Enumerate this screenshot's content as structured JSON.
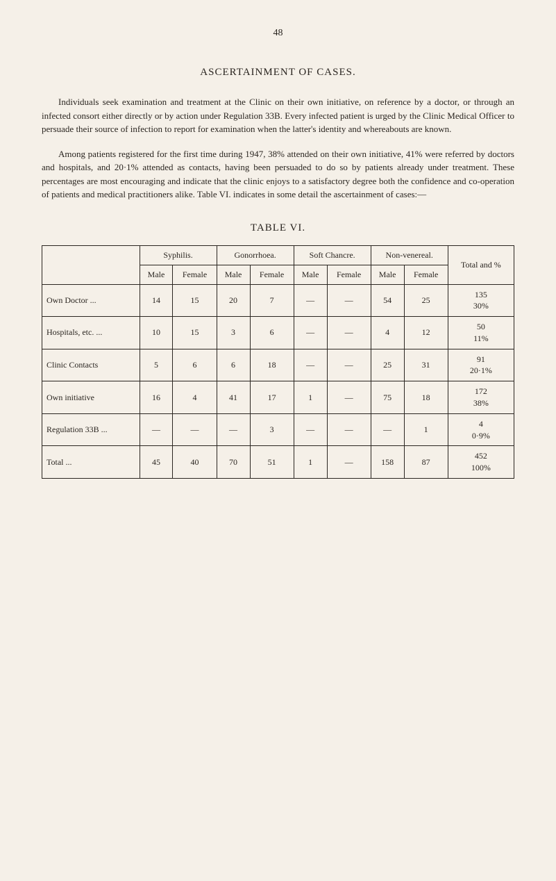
{
  "page_number": "48",
  "heading": "ASCERTAINMENT OF CASES.",
  "para1": "Individuals seek examination and treatment at the Clinic on their own initiative, on reference by a doctor, or through an infected consort either directly or by action under Regulation 33B. Every infected patient is urged by the Clinic Medical Officer to persuade their source of infection to report for examination when the latter's identity and whereabouts are known.",
  "para2": "Among patients registered for the first time during 1947, 38% attended on their own initiative, 41% were referred by doctors and hospitals, and 20·1% attended as contacts, having been persuaded to do so by patients already under treatment. These percentages are most encouraging and indicate that the clinic enjoys to a satisfactory degree both the confidence and co-operation of patients and medical practitioners alike. Table VI. indicates in some detail the ascertainment of cases:—",
  "table_title": "TABLE VI.",
  "table": {
    "group_headers": [
      "Syphilis.",
      "Gonorrhoea.",
      "Soft Chancre.",
      "Non-venereal."
    ],
    "sub_headers": [
      "Male",
      "Female",
      "Male",
      "Female",
      "Male",
      "Female",
      "Male",
      "Female"
    ],
    "total_header": "Total and %",
    "rows": [
      {
        "label": "Own Doctor ...",
        "cells": [
          "14",
          "15",
          "20",
          "7",
          "—",
          "—",
          "54",
          "25"
        ],
        "total": "135",
        "pct": "30%"
      },
      {
        "label": "Hospitals, etc. ...",
        "cells": [
          "10",
          "15",
          "3",
          "6",
          "—",
          "—",
          "4",
          "12"
        ],
        "total": "50",
        "pct": "11%"
      },
      {
        "label": "Clinic Contacts",
        "cells": [
          "5",
          "6",
          "6",
          "18",
          "—",
          "—",
          "25",
          "31"
        ],
        "total": "91",
        "pct": "20·1%"
      },
      {
        "label": "Own initiative",
        "cells": [
          "16",
          "4",
          "41",
          "17",
          "1",
          "—",
          "75",
          "18"
        ],
        "total": "172",
        "pct": "38%"
      },
      {
        "label": "Regulation 33B ...",
        "cells": [
          "—",
          "—",
          "—",
          "3",
          "—",
          "—",
          "—",
          "1"
        ],
        "total": "4",
        "pct": "0·9%"
      },
      {
        "label": "Total ...",
        "cells": [
          "45",
          "40",
          "70",
          "51",
          "1",
          "—",
          "158",
          "87"
        ],
        "total": "452",
        "pct": "100%"
      }
    ]
  }
}
